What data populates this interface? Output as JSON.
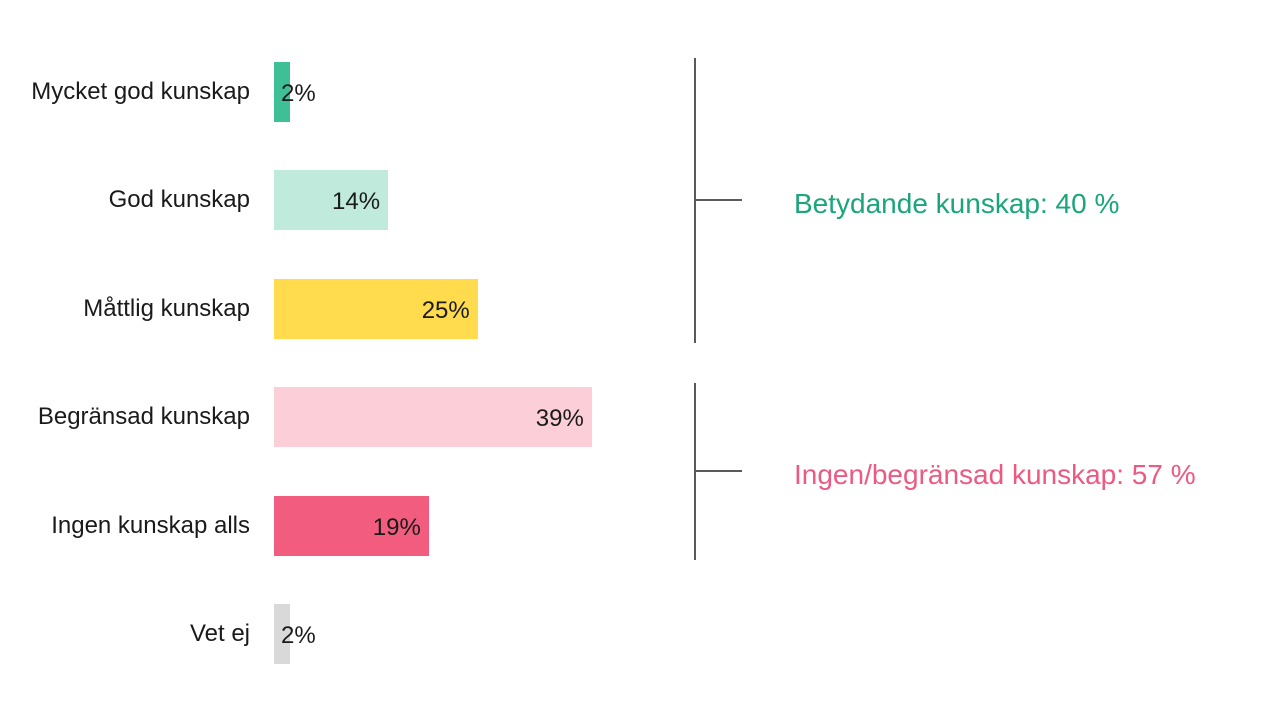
{
  "chart_data": {
    "type": "bar",
    "orientation": "horizontal",
    "categories": [
      "Mycket god kunskap",
      "God kunskap",
      "Måttlig kunskap",
      "Begränsad kunskap",
      "Ingen kunskap alls",
      "Vet ej"
    ],
    "values": [
      2,
      14,
      25,
      39,
      19,
      2
    ],
    "value_labels": [
      "2%",
      "14%",
      "25%",
      "39%",
      "19%",
      "2%"
    ],
    "colors": [
      "#3ebf95",
      "#c0eadc",
      "#ffdb4d",
      "#fccfd8",
      "#f25c7e",
      "#d9d9d9"
    ],
    "xlim": [
      0,
      40
    ],
    "grid": false,
    "groups": [
      {
        "label": "Betydande kunskap: 40 %",
        "color": "#1aa57b",
        "from": 0,
        "to": 2
      },
      {
        "label": "Ingen/begränsad kunskap: 57 %",
        "color": "#ec5a82",
        "from": 3,
        "to": 4
      }
    ]
  }
}
